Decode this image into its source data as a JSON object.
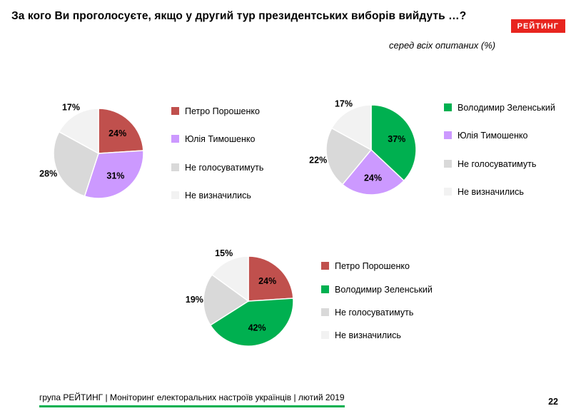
{
  "page": {
    "title": "За кого Ви проголосуєте, якщо у другий тур президентських виборів вийдуть …?",
    "subtitle": "серед всіх опитаних (%)",
    "logo_text": "РЕЙТИНГ",
    "footer_text": "група РЕЙТИНГ |  Моніторинг електоральних настроїв українців | лютий  2019",
    "page_number": "22"
  },
  "colors": {
    "accent_green": "#00b050",
    "logo_red": "#e8251f",
    "poroshenko_red": "#c0504d",
    "tymoshenko_purple": "#cc99ff",
    "zelensky_green": "#00b050",
    "not_voting_gray": "#d9d9d9",
    "undecided_light": "#f2f2f2"
  },
  "chart_data": [
    {
      "type": "pie",
      "labels": [
        "Петро Порошенко",
        "Юлія Тимошенко",
        "Не голосуватимуть",
        "Не визначились"
      ],
      "values": [
        24,
        31,
        28,
        17
      ],
      "value_labels": [
        "24%",
        "31%",
        "28%",
        "17%"
      ],
      "colors": [
        "#c0504d",
        "#cc99ff",
        "#d9d9d9",
        "#f2f2f2"
      ],
      "start_angle_deg": 0,
      "direction": "clockwise",
      "legend_position": "right"
    },
    {
      "type": "pie",
      "labels": [
        "Володимир Зеленський",
        "Юлія Тимошенко",
        "Не голосуватимуть",
        "Не визначились"
      ],
      "values": [
        37,
        24,
        22,
        17
      ],
      "value_labels": [
        "37%",
        "24%",
        "22%",
        "17%"
      ],
      "colors": [
        "#00b050",
        "#cc99ff",
        "#d9d9d9",
        "#f2f2f2"
      ],
      "start_angle_deg": 0,
      "direction": "clockwise",
      "legend_position": "right"
    },
    {
      "type": "pie",
      "labels": [
        "Петро Порошенко",
        "Володимир Зеленський",
        "Не голосуватимуть",
        "Не визначились"
      ],
      "values": [
        24,
        42,
        19,
        15
      ],
      "value_labels": [
        "24%",
        "42%",
        "19%",
        "15%"
      ],
      "colors": [
        "#c0504d",
        "#00b050",
        "#d9d9d9",
        "#f2f2f2"
      ],
      "start_angle_deg": 0,
      "direction": "clockwise",
      "legend_position": "right"
    }
  ]
}
